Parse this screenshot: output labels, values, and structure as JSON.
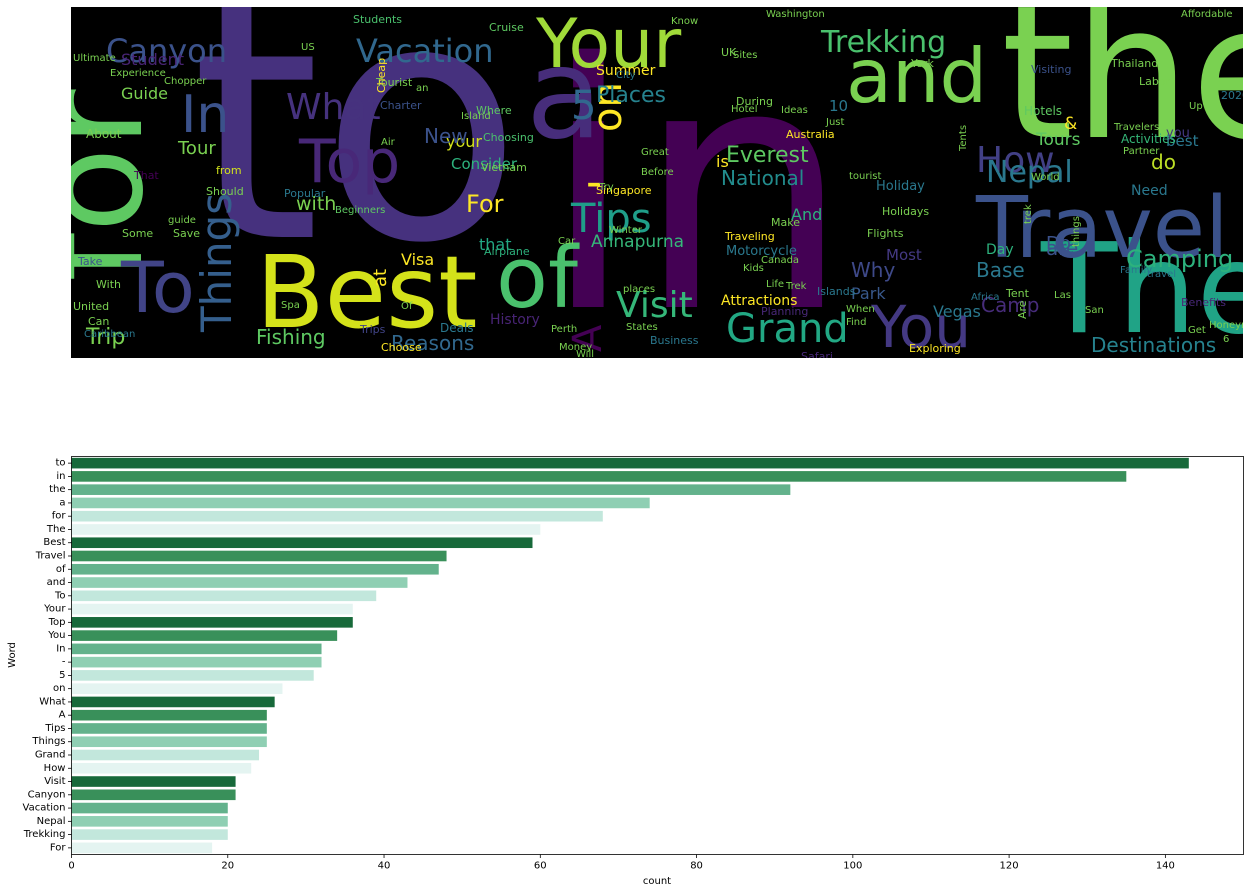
{
  "wordcloud": {
    "background": "#000000",
    "words": [
      {
        "text": "to",
        "color": "#46317e"
      },
      {
        "text": "in",
        "color": "#440154"
      },
      {
        "text": "the",
        "color": "#7ad151"
      },
      {
        "text": "a",
        "color": "#472d7b"
      },
      {
        "text": "for",
        "color": "#5ec962"
      },
      {
        "text": "The",
        "color": "#20a386"
      },
      {
        "text": "Best",
        "color": "#d4e21a"
      },
      {
        "text": "Travel",
        "color": "#3b528b"
      },
      {
        "text": "of",
        "color": "#4ac16d"
      },
      {
        "text": "and",
        "color": "#7ad151"
      },
      {
        "text": "To",
        "color": "#414487"
      },
      {
        "text": "Your",
        "color": "#a0da39"
      },
      {
        "text": "Top",
        "color": "#482878"
      },
      {
        "text": "You",
        "color": "#443983"
      },
      {
        "text": "In",
        "color": "#3b528b"
      },
      {
        "text": "-",
        "color": "#fde725"
      },
      {
        "text": "5",
        "color": "#31688e"
      },
      {
        "text": "on",
        "color": "#fde725"
      },
      {
        "text": "What",
        "color": "#46327e"
      },
      {
        "text": "A",
        "color": "#440154"
      },
      {
        "text": "Tips",
        "color": "#1f9e89"
      },
      {
        "text": "Things",
        "color": "#355f8d"
      },
      {
        "text": "Grand",
        "color": "#22a884"
      },
      {
        "text": "How",
        "color": "#424086"
      },
      {
        "text": "Visit",
        "color": "#35b779"
      },
      {
        "text": "Canyon",
        "color": "#3b528b"
      },
      {
        "text": "Vacation",
        "color": "#31688e"
      },
      {
        "text": "Nepal",
        "color": "#2a788e"
      },
      {
        "text": "Trekking",
        "color": "#4ac16d"
      },
      {
        "text": "For",
        "color": "#fde725"
      },
      {
        "text": "Camping",
        "color": "#2db27d"
      },
      {
        "text": "Destinations",
        "color": "#26828e"
      },
      {
        "text": "Places",
        "color": "#26828e"
      },
      {
        "text": "Everest",
        "color": "#5ec962"
      },
      {
        "text": "National",
        "color": "#228c8d"
      },
      {
        "text": "Reasons",
        "color": "#31688e"
      },
      {
        "text": "Fishing",
        "color": "#5ec962"
      },
      {
        "text": "Trip",
        "color": "#7ad151"
      },
      {
        "text": "Annapurna",
        "color": "#35b779"
      },
      {
        "text": "Base",
        "color": "#2a788e"
      },
      {
        "text": "Camp",
        "color": "#472c7a"
      },
      {
        "text": "Why",
        "color": "#3e4989"
      },
      {
        "text": "Park",
        "color": "#38588c"
      },
      {
        "text": "Tours",
        "color": "#5ec962"
      },
      {
        "text": "Tour",
        "color": "#7ad151"
      },
      {
        "text": "with",
        "color": "#7ad151"
      },
      {
        "text": "Visa",
        "color": "#fde725"
      },
      {
        "text": "Guide",
        "color": "#7ad151"
      },
      {
        "text": "Student",
        "color": "#482475"
      },
      {
        "text": "Consider",
        "color": "#2db27d"
      },
      {
        "text": "your",
        "color": "#d2e21b"
      },
      {
        "text": "Summer",
        "color": "#fde725"
      },
      {
        "text": "Holiday",
        "color": "#2a788e"
      },
      {
        "text": "Attractions",
        "color": "#fde725"
      },
      {
        "text": "Motorcycle",
        "color": "#2a788e"
      },
      {
        "text": "Most",
        "color": "#443983"
      },
      {
        "text": "Day",
        "color": "#2db27d"
      },
      {
        "text": "Do",
        "color": "#3b528b"
      },
      {
        "text": "do",
        "color": "#bddf26"
      },
      {
        "text": "are",
        "color": "#3b528b"
      },
      {
        "text": "is",
        "color": "#fde725"
      },
      {
        "text": "New",
        "color": "#3b528b"
      },
      {
        "text": "at",
        "color": "#fde725"
      },
      {
        "text": "that",
        "color": "#22a884"
      },
      {
        "text": "10",
        "color": "#2a788e"
      },
      {
        "text": "&",
        "color": "#fde725"
      },
      {
        "text": "best",
        "color": "#2a788e"
      },
      {
        "text": "you",
        "color": "#443983"
      },
      {
        "text": "Need",
        "color": "#2a788e"
      },
      {
        "text": "And",
        "color": "#2db27d"
      },
      {
        "text": "Hotels",
        "color": "#5ec962"
      },
      {
        "text": "Activities",
        "color": "#35b779"
      },
      {
        "text": "Visiting",
        "color": "#3b528b"
      },
      {
        "text": "Flights",
        "color": "#7ad151"
      },
      {
        "text": "Holidays",
        "color": "#7ad151"
      },
      {
        "text": "Traveling",
        "color": "#fde725"
      },
      {
        "text": "Singapore",
        "color": "#fde725"
      },
      {
        "text": "Vietnam",
        "color": "#7ad151"
      },
      {
        "text": "Choosing",
        "color": "#4ac16d"
      },
      {
        "text": "Where",
        "color": "#5ec962"
      },
      {
        "text": "Australia",
        "color": "#fde725"
      },
      {
        "text": "Business",
        "color": "#2a788e"
      },
      {
        "text": "Safari",
        "color": "#482878"
      },
      {
        "text": "Exploring",
        "color": "#fde725"
      },
      {
        "text": "Vegas",
        "color": "#2a788e"
      },
      {
        "text": "Planning",
        "color": "#482878"
      },
      {
        "text": "History",
        "color": "#482475"
      },
      {
        "text": "Airplane",
        "color": "#2db27d"
      },
      {
        "text": "Cruise",
        "color": "#5ec962"
      },
      {
        "text": "Students",
        "color": "#4ac16d"
      },
      {
        "text": "Tourist",
        "color": "#7ad151"
      },
      {
        "text": "Charter",
        "color": "#3b528b"
      },
      {
        "text": "Cheap",
        "color": "#fde725"
      },
      {
        "text": "Deals",
        "color": "#2a788e"
      },
      {
        "text": "Trips",
        "color": "#414487"
      },
      {
        "text": "Choose",
        "color": "#fde725"
      },
      {
        "text": "Popular",
        "color": "#2a788e"
      },
      {
        "text": "Beginners",
        "color": "#5ec962"
      },
      {
        "text": "About",
        "color": "#7ad151"
      },
      {
        "text": "guide",
        "color": "#7ad151"
      },
      {
        "text": "Some",
        "color": "#7ad151"
      },
      {
        "text": "Save",
        "color": "#7ad151"
      },
      {
        "text": "Take",
        "color": "#3b528b"
      },
      {
        "text": "With",
        "color": "#7ad151"
      },
      {
        "text": "United",
        "color": "#7ad151"
      },
      {
        "text": "Can",
        "color": "#7ad151"
      },
      {
        "text": "Caribbean",
        "color": "#2a788e"
      },
      {
        "text": "Should",
        "color": "#7ad151"
      },
      {
        "text": "from",
        "color": "#d2e21b"
      },
      {
        "text": "That",
        "color": "#440154"
      },
      {
        "text": "Canada",
        "color": "#7ad151"
      },
      {
        "text": "Kids",
        "color": "#7ad151"
      },
      {
        "text": "Make",
        "color": "#7ad151"
      },
      {
        "text": "Islands",
        "color": "#2a788e"
      },
      {
        "text": "Africa",
        "color": "#2a788e"
      },
      {
        "text": "Tent",
        "color": "#7ad151"
      },
      {
        "text": "Las",
        "color": "#7ad151"
      },
      {
        "text": "Benefits",
        "color": "#482878"
      },
      {
        "text": "Family",
        "color": "#2a788e"
      },
      {
        "text": "travel",
        "color": "#2a788e"
      },
      {
        "text": "Labor",
        "color": "#7ad151"
      },
      {
        "text": "Thailand",
        "color": "#7ad151"
      },
      {
        "text": "2020",
        "color": "#2a788e"
      },
      {
        "text": "base",
        "color": "#5ec962"
      },
      {
        "text": "York",
        "color": "#7ad151"
      },
      {
        "text": "During",
        "color": "#7ad151"
      },
      {
        "text": "Just",
        "color": "#7ad151"
      },
      {
        "text": "UK",
        "color": "#7ad151"
      },
      {
        "text": "Sites",
        "color": "#7ad151"
      },
      {
        "text": "Up",
        "color": "#7ad151"
      },
      {
        "text": "Washington",
        "color": "#7ad151"
      },
      {
        "text": "Affordable",
        "color": "#7ad151"
      },
      {
        "text": "Know",
        "color": "#7ad151"
      },
      {
        "text": "City",
        "color": "#2a788e"
      },
      {
        "text": "Before",
        "color": "#7ad151"
      },
      {
        "text": "Great",
        "color": "#7ad151"
      },
      {
        "text": "Winter",
        "color": "#7ad151"
      },
      {
        "text": "Try",
        "color": "#7ad151"
      },
      {
        "text": "Perth",
        "color": "#7ad151"
      },
      {
        "text": "Car",
        "color": "#7ad151"
      },
      {
        "text": "States",
        "color": "#7ad151"
      },
      {
        "text": "Money",
        "color": "#7ad151"
      },
      {
        "text": "Air",
        "color": "#7ad151"
      },
      {
        "text": "Island",
        "color": "#7ad151"
      },
      {
        "text": "Ultimate",
        "color": "#7ad151"
      },
      {
        "text": "Experience",
        "color": "#7ad151"
      },
      {
        "text": "Chopper",
        "color": "#7ad151"
      },
      {
        "text": "US",
        "color": "#7ad151"
      },
      {
        "text": "Spa",
        "color": "#7ad151"
      },
      {
        "text": "Hotel",
        "color": "#7ad151"
      },
      {
        "text": "Life",
        "color": "#7ad151"
      },
      {
        "text": "Ideas",
        "color": "#7ad151"
      },
      {
        "text": "tourist",
        "color": "#7ad151"
      },
      {
        "text": "Travelers",
        "color": "#7ad151"
      },
      {
        "text": "World",
        "color": "#7ad151"
      },
      {
        "text": "Partner",
        "color": "#7ad151"
      },
      {
        "text": "Find",
        "color": "#7ad151"
      },
      {
        "text": "When",
        "color": "#7ad151"
      },
      {
        "text": "Are",
        "color": "#7ad151"
      },
      {
        "text": "Tents",
        "color": "#7ad151"
      },
      {
        "text": "Trek",
        "color": "#7ad151"
      },
      {
        "text": "trek",
        "color": "#7ad151"
      },
      {
        "text": "things",
        "color": "#7ad151"
      },
      {
        "text": "places",
        "color": "#7ad151"
      },
      {
        "text": "an",
        "color": "#7ad151"
      },
      {
        "text": "Of",
        "color": "#7ad151"
      },
      {
        "text": "Will",
        "color": "#7ad151"
      },
      {
        "text": "6",
        "color": "#7ad151"
      },
      {
        "text": "San",
        "color": "#7ad151"
      },
      {
        "text": "Honeymoon",
        "color": "#7ad151"
      },
      {
        "text": "Get",
        "color": "#7ad151"
      }
    ]
  },
  "barchart": {
    "ylabel": "Word",
    "xlabel": "count"
  },
  "chart_data": {
    "type": "bar",
    "orientation": "horizontal",
    "title": "",
    "xlabel": "count",
    "ylabel": "Word",
    "xlim": [
      0,
      150
    ],
    "xticks": [
      0,
      20,
      40,
      60,
      80,
      100,
      120,
      140
    ],
    "grid": false,
    "palette": [
      "#17693a",
      "#39905a",
      "#63b28c",
      "#8fcfb3",
      "#c2e7dc",
      "#e4f4f1"
    ],
    "categories": [
      "to",
      "in",
      "the",
      "a",
      "for",
      "The",
      "Best",
      "Travel",
      "of",
      "and",
      "To",
      "Your",
      "Top",
      "You",
      "In",
      "-",
      "5",
      "on",
      "What",
      "A",
      "Tips",
      "Things",
      "Grand",
      "How",
      "Visit",
      "Canyon",
      "Vacation",
      "Nepal",
      "Trekking",
      "For"
    ],
    "values": [
      143,
      135,
      92,
      74,
      68,
      60,
      59,
      48,
      47,
      43,
      39,
      36,
      36,
      34,
      32,
      32,
      31,
      27,
      26,
      25,
      25,
      25,
      24,
      23,
      21,
      21,
      20,
      20,
      20,
      18
    ]
  }
}
